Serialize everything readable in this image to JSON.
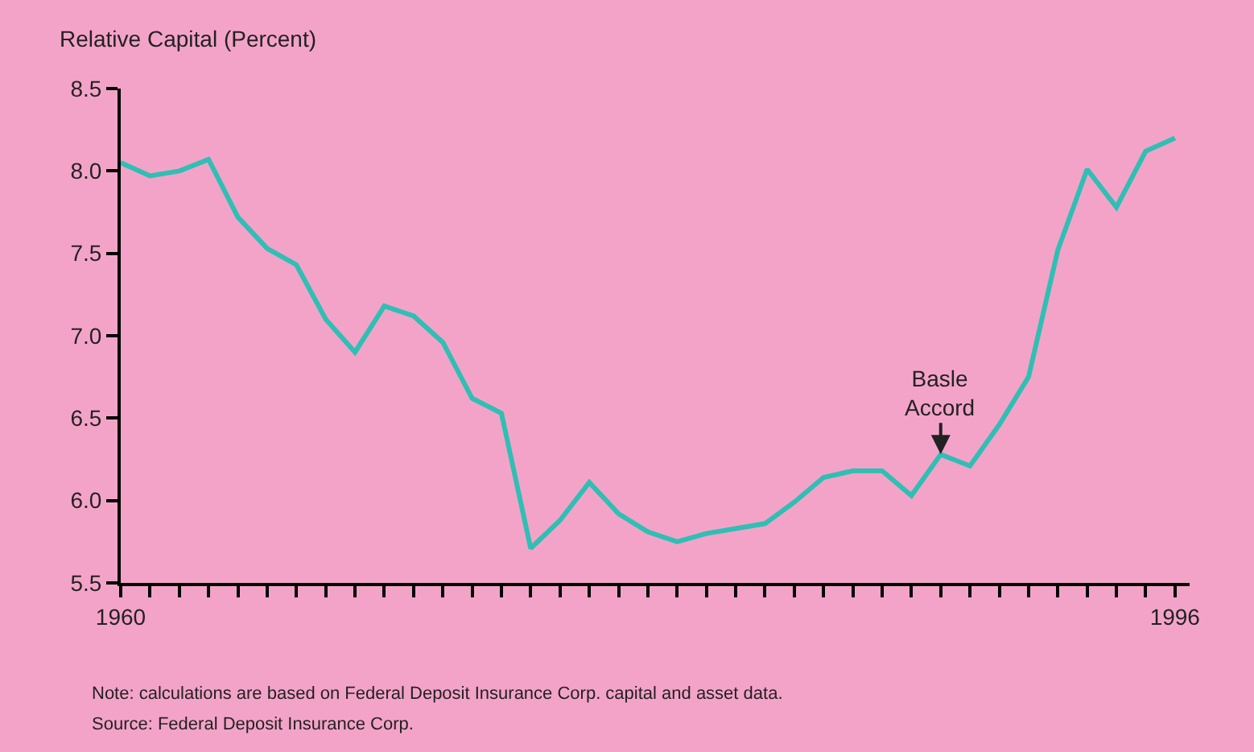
{
  "chart_data": {
    "type": "line",
    "ylabel": "Relative Capital (Percent)",
    "x": [
      1960,
      1961,
      1962,
      1963,
      1964,
      1965,
      1966,
      1967,
      1968,
      1969,
      1970,
      1971,
      1972,
      1973,
      1974,
      1975,
      1976,
      1977,
      1978,
      1979,
      1980,
      1981,
      1982,
      1983,
      1984,
      1985,
      1986,
      1987,
      1988,
      1989,
      1990,
      1991,
      1992,
      1993,
      1994,
      1995,
      1996
    ],
    "series": [
      {
        "color": "#2fbfb4",
        "values": [
          8.05,
          7.97,
          8.0,
          8.07,
          7.72,
          7.53,
          7.43,
          7.1,
          6.9,
          7.18,
          7.12,
          6.96,
          6.62,
          6.53,
          5.71,
          5.88,
          6.11,
          5.92,
          5.81,
          5.75,
          5.8,
          5.83,
          5.86,
          5.99,
          6.14,
          6.18,
          6.18,
          6.03,
          6.28,
          6.21,
          6.46,
          6.75,
          7.52,
          8.01,
          7.78,
          8.12,
          8.2
        ]
      }
    ],
    "xlim": [
      1960,
      1996.5
    ],
    "xticks": [
      1960,
      {
        "value": 1961,
        "label": null
      },
      {
        "value": 1962,
        "label": null
      },
      {
        "value": 1963,
        "label": null
      },
      {
        "value": 1964,
        "label": null
      },
      {
        "value": 1965,
        "label": null
      },
      {
        "value": 1966,
        "label": null
      },
      {
        "value": 1967,
        "label": null
      },
      {
        "value": 1968,
        "label": null
      },
      {
        "value": 1969,
        "label": null
      },
      {
        "value": 1970,
        "label": null
      },
      {
        "value": 1971,
        "label": null
      },
      {
        "value": 1972,
        "label": null
      },
      {
        "value": 1973,
        "label": null
      },
      {
        "value": 1974,
        "label": null
      },
      {
        "value": 1975,
        "label": null
      },
      {
        "value": 1976,
        "label": null
      },
      {
        "value": 1977,
        "label": null
      },
      {
        "value": 1978,
        "label": null
      },
      {
        "value": 1979,
        "label": null
      },
      {
        "value": 1980,
        "label": null
      },
      {
        "value": 1981,
        "label": null
      },
      {
        "value": 1982,
        "label": null
      },
      {
        "value": 1983,
        "label": null
      },
      {
        "value": 1984,
        "label": null
      },
      {
        "value": 1985,
        "label": null
      },
      {
        "value": 1986,
        "label": null
      },
      {
        "value": 1987,
        "label": null
      },
      {
        "value": 1988,
        "label": null
      },
      {
        "value": 1989,
        "label": null
      },
      {
        "value": 1990,
        "label": null
      },
      {
        "value": 1991,
        "label": null
      },
      {
        "value": 1992,
        "label": null
      },
      {
        "value": 1993,
        "label": null
      },
      {
        "value": 1994,
        "label": null
      },
      {
        "value": 1995,
        "label": null
      },
      1996
    ],
    "ylim": [
      5.5,
      8.5
    ],
    "yticks": [
      {
        "value": 5.5,
        "label": "5.5"
      },
      {
        "value": 6.0,
        "label": "6.0"
      },
      {
        "value": 6.5,
        "label": "6.5"
      },
      {
        "value": 7.0,
        "label": "7.0"
      },
      {
        "value": 7.5,
        "label": "7.5"
      },
      {
        "value": 8.0,
        "label": "8.0"
      },
      {
        "value": 8.5,
        "label": "8.5"
      }
    ],
    "grid": false,
    "legend": false,
    "marker": "none",
    "line_style": "solid",
    "annotations": [
      {
        "text": "Basle\nAccord",
        "x": 1988,
        "y": 6.28
      },
      "Note: calculations are based on Federal Deposit Insurance Corp. capital and asset data.",
      "Source: Federal Deposit Insurance Corp."
    ]
  }
}
